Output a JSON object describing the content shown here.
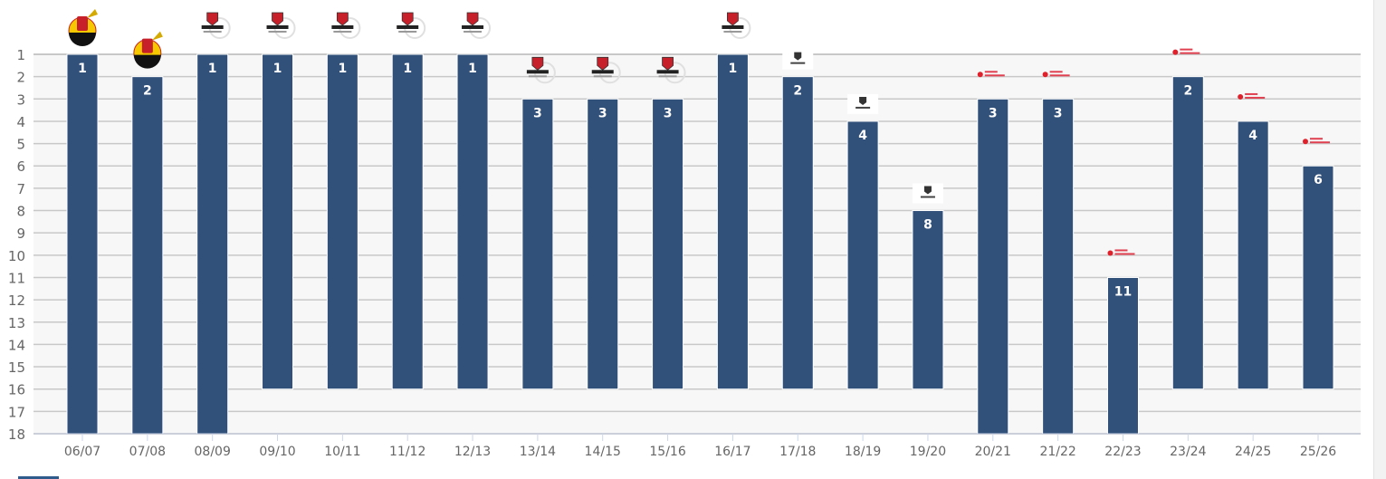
{
  "chart_data": {
    "type": "bar",
    "orientation": "vertical, rank axis inverted (1 at top)",
    "categories": [
      "06/07",
      "07/08",
      "08/09",
      "09/10",
      "10/11",
      "11/12",
      "12/13",
      "13/14",
      "14/15",
      "15/16",
      "16/17",
      "17/18",
      "18/19",
      "19/20",
      "20/21",
      "21/22",
      "22/23",
      "23/24",
      "24/25",
      "25/26"
    ],
    "values": [
      1,
      2,
      1,
      1,
      1,
      1,
      1,
      3,
      3,
      3,
      1,
      2,
      4,
      8,
      3,
      3,
      11,
      2,
      4,
      6
    ],
    "league_size": [
      18,
      18,
      18,
      16,
      16,
      16,
      16,
      16,
      16,
      16,
      16,
      16,
      16,
      16,
      18,
      18,
      18,
      16,
      16,
      16
    ],
    "league_logo": [
      "jupiler-league-mascot",
      "jupiler-league-mascot",
      "jupiler-pro-league-shield",
      "jupiler-pro-league-shield",
      "jupiler-pro-league-shield",
      "jupiler-pro-league-shield",
      "jupiler-pro-league-shield",
      "jupiler-pro-league-shield",
      "jupiler-pro-league-shield",
      "jupiler-pro-league-shield",
      "jupiler-pro-league-shield",
      "jupiler-pro-league-small",
      "jupiler-pro-league-small",
      "jupiler-pro-league-small",
      "jupiler-pro-league-red",
      "jupiler-pro-league-red",
      "jupiler-pro-league-red",
      "jupiler-pro-league-red",
      "jupiler-pro-league-red",
      "jupiler-pro-league-red"
    ],
    "logo_text": "Jupiler Pro League",
    "yticks": [
      1,
      2,
      3,
      4,
      5,
      6,
      7,
      8,
      9,
      10,
      11,
      12,
      13,
      14,
      15,
      16,
      17,
      18
    ],
    "ylim": [
      1,
      18
    ],
    "grid": true,
    "bar_color": "#31507a",
    "plot_bg": "#f7f7f7",
    "xlabel": "",
    "ylabel": ""
  }
}
